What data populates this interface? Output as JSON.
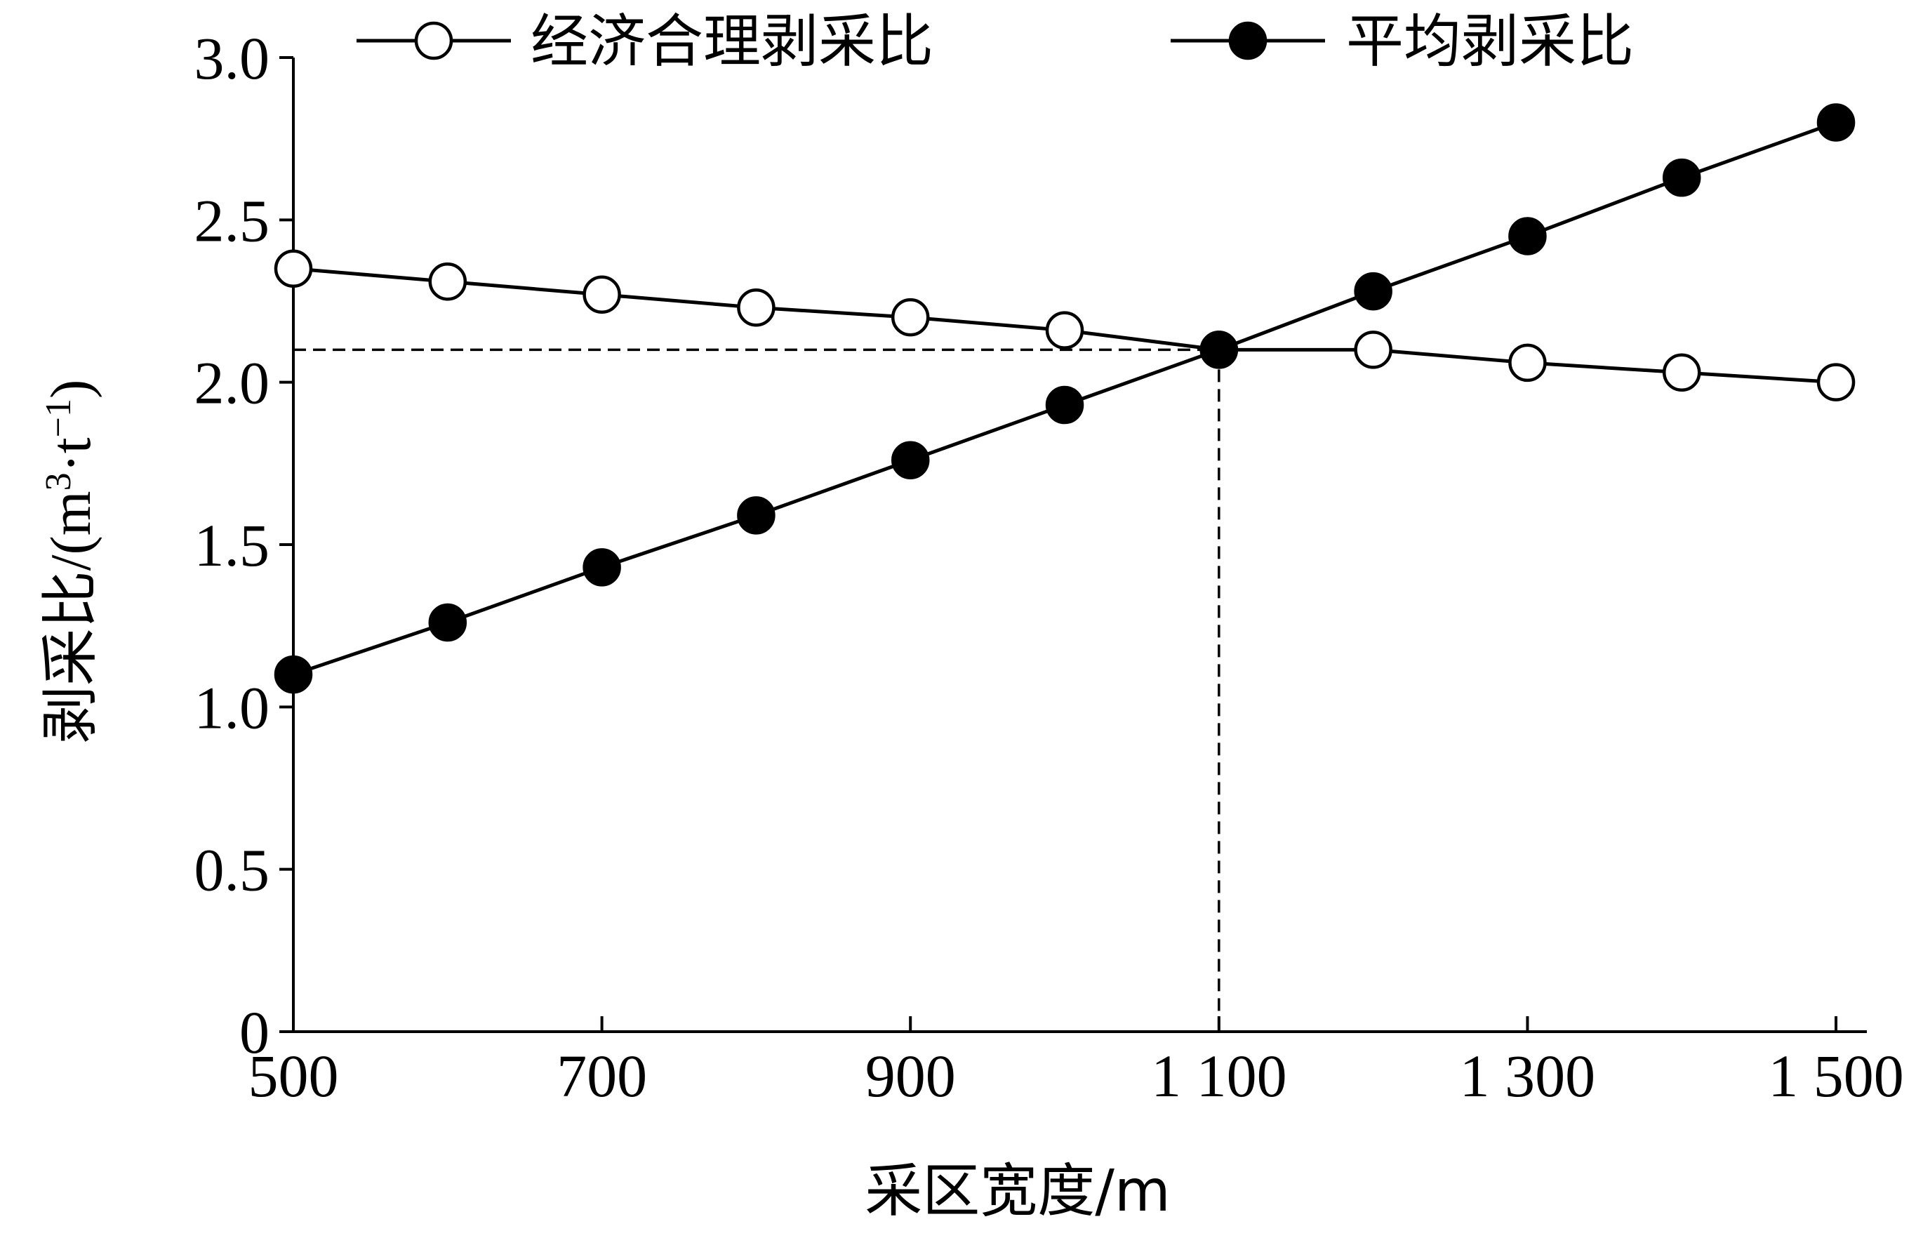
{
  "chart_data": {
    "type": "line",
    "title": "",
    "xlabel": "采区宽度/m",
    "ylabel_cn": "剥采比",
    "ylabel_unit_open": "/(m",
    "ylabel_unit_sup1": "3",
    "ylabel_unit_mid": "·t",
    "ylabel_unit_sup2": "−1",
    "ylabel_unit_close": ")",
    "xlim": [
      500,
      1520
    ],
    "ylim": [
      0,
      3.0
    ],
    "x_ticks": [
      {
        "value": 500,
        "label": "500"
      },
      {
        "value": 700,
        "label": "700"
      },
      {
        "value": 900,
        "label": "900"
      },
      {
        "value": 1100,
        "label": "1 100"
      },
      {
        "value": 1300,
        "label": "1 300"
      },
      {
        "value": 1500,
        "label": "1 500"
      }
    ],
    "y_ticks": [
      {
        "value": 0,
        "label": "0"
      },
      {
        "value": 0.5,
        "label": "0.5"
      },
      {
        "value": 1.0,
        "label": "1.0"
      },
      {
        "value": 1.5,
        "label": "1.5"
      },
      {
        "value": 2.0,
        "label": "2.0"
      },
      {
        "value": 2.5,
        "label": "2.5"
      },
      {
        "value": 3.0,
        "label": "3.0"
      }
    ],
    "grid": false,
    "legend_position": "top",
    "series": [
      {
        "name": "经济合理剥采比",
        "marker": "open-circle",
        "x": [
          500,
          600,
          700,
          800,
          900,
          1000,
          1100,
          1200,
          1300,
          1400,
          1500
        ],
        "y": [
          2.35,
          2.31,
          2.27,
          2.23,
          2.2,
          2.16,
          2.1,
          2.1,
          2.06,
          2.03,
          2.0
        ]
      },
      {
        "name": "平均剥采比",
        "marker": "filled-circle",
        "x": [
          500,
          600,
          700,
          800,
          900,
          1000,
          1100,
          1200,
          1300,
          1400,
          1500
        ],
        "y": [
          1.1,
          1.26,
          1.43,
          1.59,
          1.76,
          1.93,
          2.1,
          2.28,
          2.45,
          2.63,
          2.8
        ]
      }
    ],
    "reference_point": {
      "x": 1100,
      "y": 2.1
    }
  }
}
